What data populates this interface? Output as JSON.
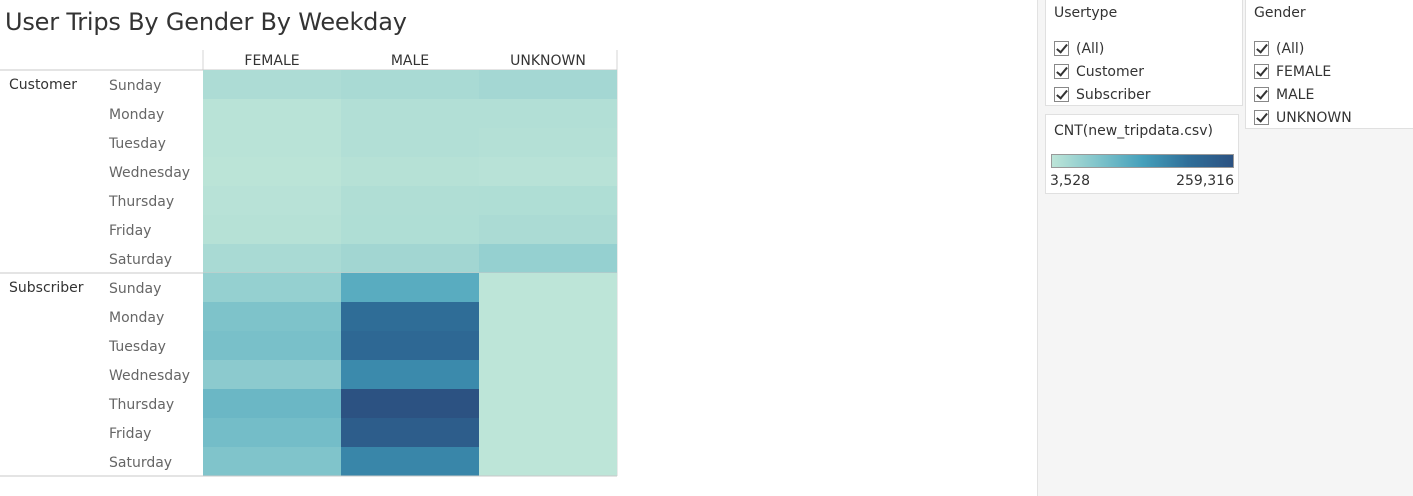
{
  "title": "User Trips By Gender By Weekday",
  "chart_data": {
    "type": "heatmap",
    "columns": [
      "FEMALE",
      "MALE",
      "UNKNOWN"
    ],
    "row_groups": [
      {
        "name": "Customer",
        "rows": [
          "Sunday",
          "Monday",
          "Tuesday",
          "Wednesday",
          "Thursday",
          "Friday",
          "Saturday"
        ],
        "values": [
          [
            20000,
            25000,
            30000
          ],
          [
            8000,
            15000,
            15000
          ],
          [
            8000,
            15000,
            13000
          ],
          [
            6000,
            11000,
            9000
          ],
          [
            9000,
            17000,
            18000
          ],
          [
            11000,
            18000,
            22000
          ],
          [
            24000,
            32000,
            45000
          ]
        ]
      },
      {
        "name": "Subscriber",
        "rows": [
          "Sunday",
          "Monday",
          "Tuesday",
          "Wednesday",
          "Thursday",
          "Friday",
          "Saturday"
        ],
        "values": [
          [
            45000,
            110000,
            3800
          ],
          [
            70000,
            200000,
            3700
          ],
          [
            75000,
            210000,
            3700
          ],
          [
            55000,
            160000,
            3600
          ],
          [
            90000,
            259316,
            3528
          ],
          [
            80000,
            235000,
            3600
          ],
          [
            68000,
            165000,
            3800
          ]
        ]
      }
    ],
    "color_min": 3528,
    "color_max": 259316,
    "color_scale": [
      "#bde5d8",
      "#80c4cb",
      "#45a0bb",
      "#2f6f99",
      "#2c5282"
    ]
  },
  "filters": {
    "usertype": {
      "title": "Usertype",
      "items": [
        "(All)",
        "Customer",
        "Subscriber"
      ]
    },
    "gender": {
      "title": "Gender",
      "items": [
        "(All)",
        "FEMALE",
        "MALE",
        "UNKNOWN"
      ]
    }
  },
  "legend": {
    "title": "CNT(new_tripdata.csv)",
    "min_label": "3,528",
    "max_label": "259,316"
  }
}
